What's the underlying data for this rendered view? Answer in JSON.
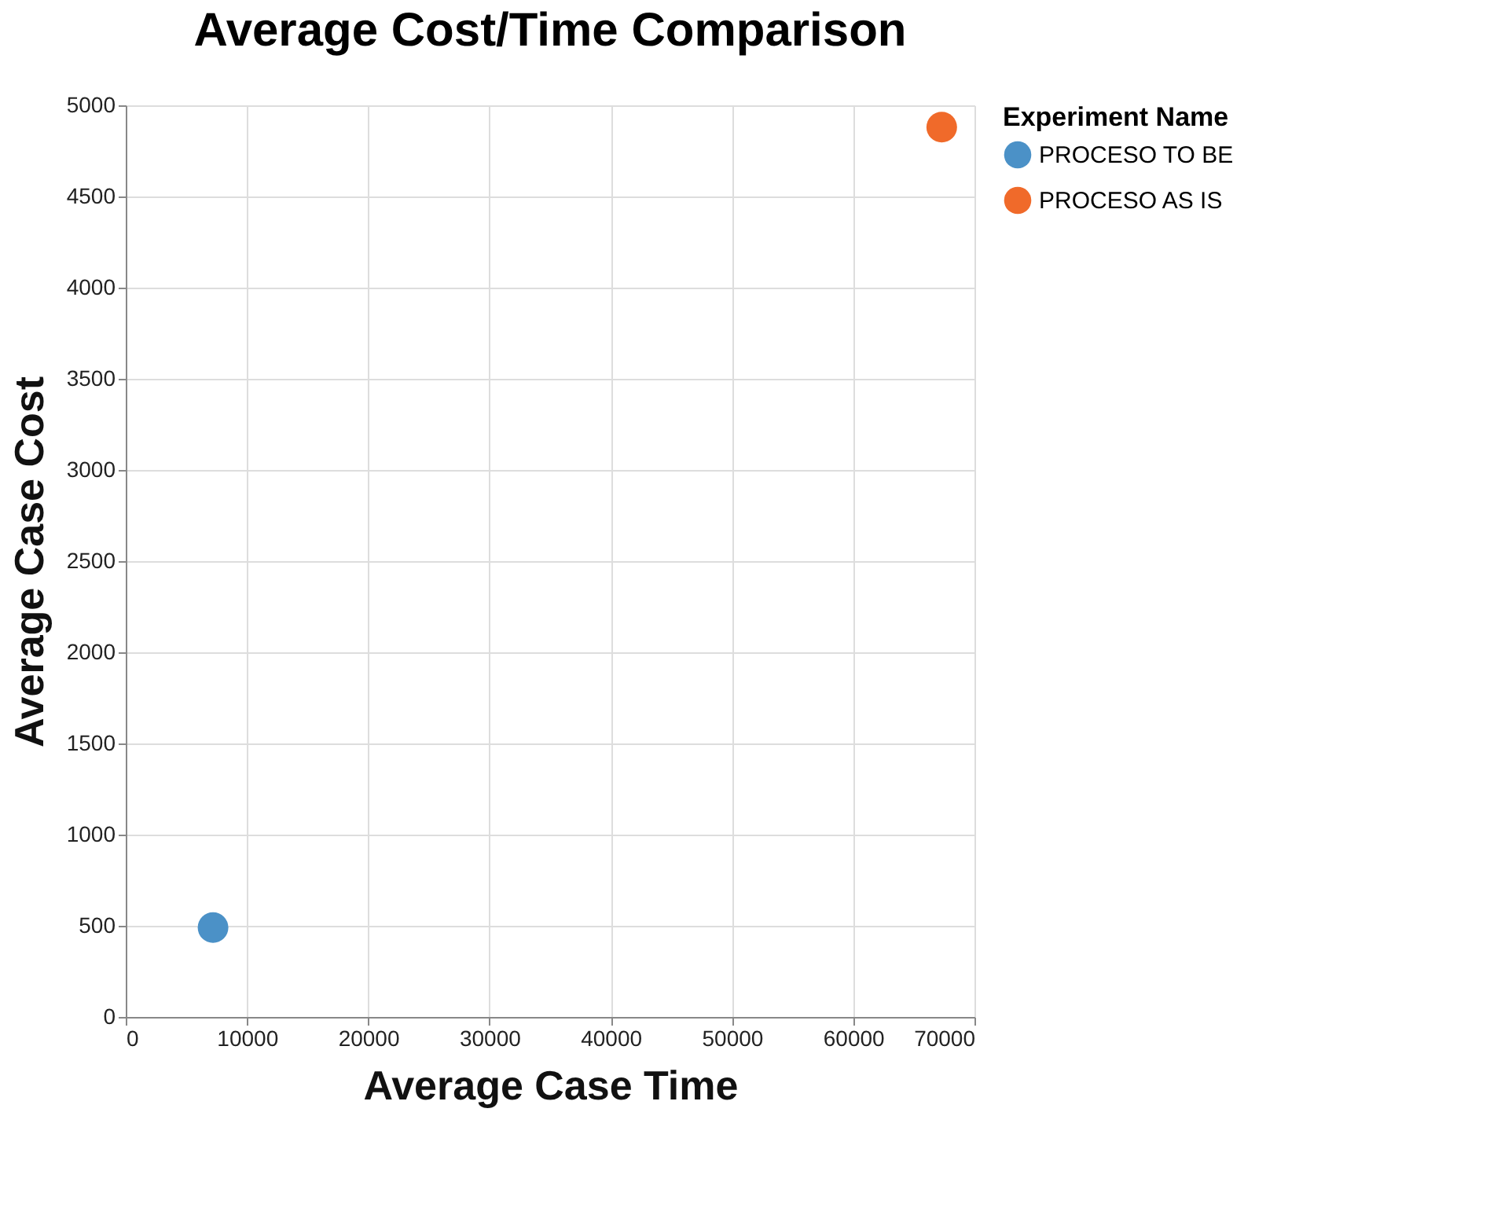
{
  "chart_data": {
    "type": "scatter",
    "title": "Average Cost/Time Comparison",
    "xlabel": "Average Case Time",
    "ylabel": "Average Case Cost",
    "legend_title": "Experiment Name",
    "series": [
      {
        "name": "PROCESO TO BE",
        "color": "#4b91c7",
        "x": [
          7200
        ],
        "values": [
          490
        ]
      },
      {
        "name": "PROCESO AS IS",
        "color": "#f06a2a",
        "x": [
          67300
        ],
        "values": [
          4880
        ]
      }
    ],
    "xlim": [
      0,
      70000
    ],
    "xticks": [
      0,
      10000,
      20000,
      30000,
      40000,
      50000,
      60000,
      70000
    ],
    "ylim": [
      0,
      5000
    ],
    "yticks": [
      0,
      500,
      1000,
      1500,
      2000,
      2500,
      3000,
      3500,
      4000,
      4500,
      5000
    ],
    "grid": true,
    "legend": "right",
    "marker": "circle"
  }
}
